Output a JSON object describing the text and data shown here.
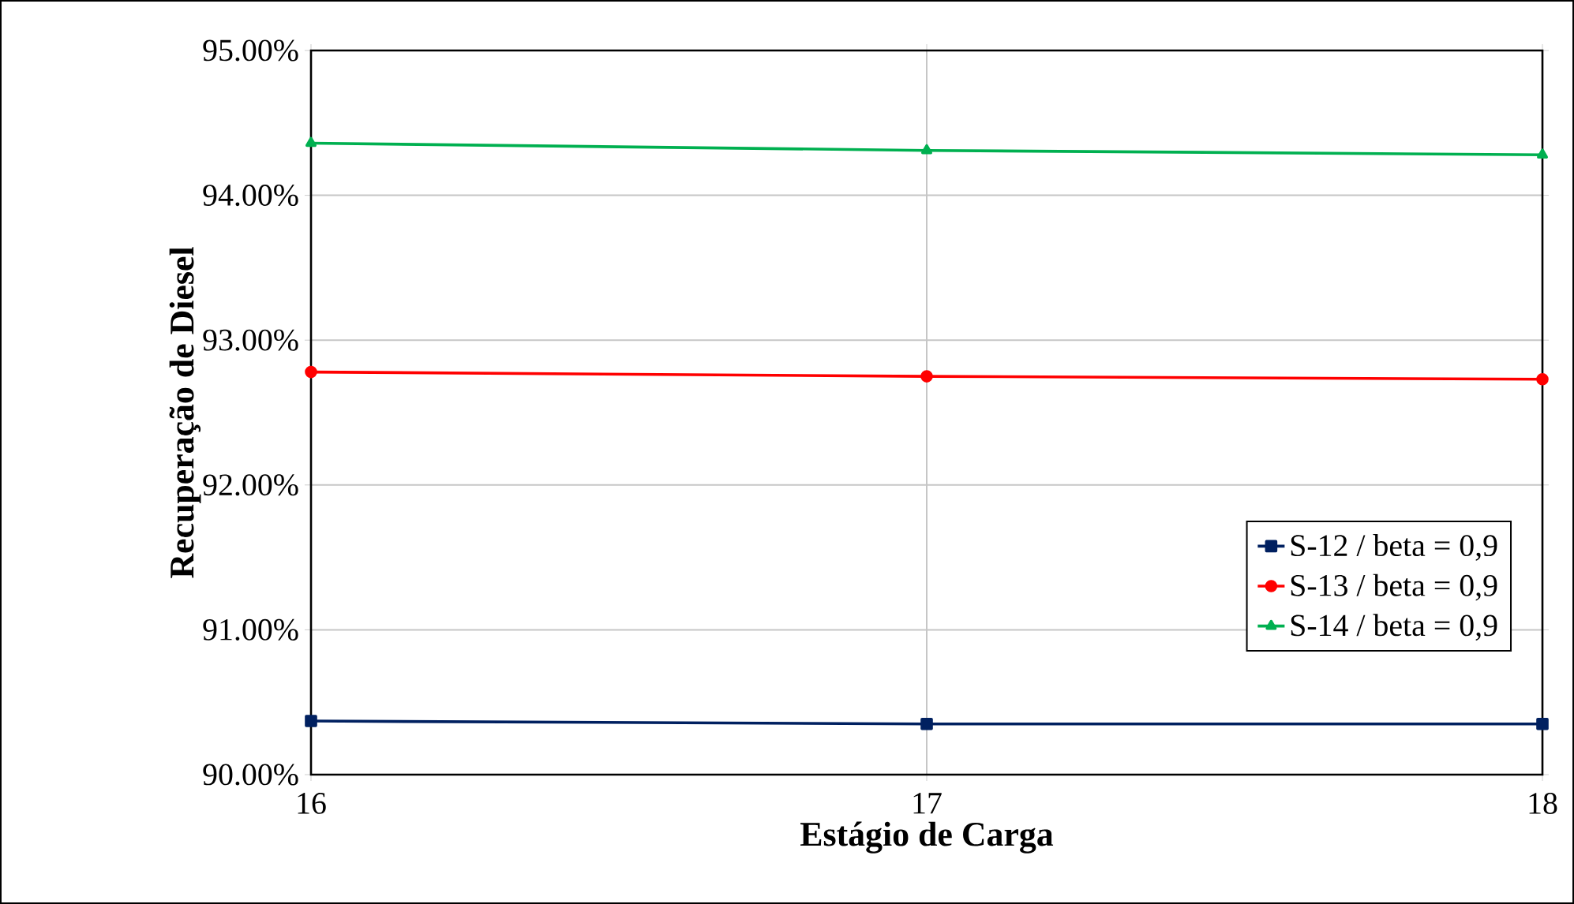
{
  "chart_data": {
    "type": "line",
    "xlabel": "Estágio de Carga",
    "ylabel": "Recuperação de Diesel",
    "x": [
      16,
      17,
      18
    ],
    "xlim": [
      16,
      18
    ],
    "xticks": [
      16,
      17,
      18
    ],
    "ylim": [
      90,
      95
    ],
    "yticks": [
      {
        "value": 90,
        "label": "90.00%"
      },
      {
        "value": 91,
        "label": "91.00%"
      },
      {
        "value": 92,
        "label": "92.00%"
      },
      {
        "value": 93,
        "label": "93.00%"
      },
      {
        "value": 94,
        "label": "94.00%"
      },
      {
        "value": 95,
        "label": "95.00%"
      }
    ],
    "grid": true,
    "legend": "right",
    "series": [
      {
        "name": "S-12 / beta = 0,9",
        "color": "#002060",
        "marker": "square",
        "values": [
          90.37,
          90.35,
          90.35
        ]
      },
      {
        "name": "S-13 / beta = 0,9",
        "color": "#ff0000",
        "marker": "circle",
        "values": [
          92.78,
          92.75,
          92.73
        ]
      },
      {
        "name": "S-14 / beta = 0,9",
        "color": "#00b050",
        "marker": "triangle",
        "values": [
          94.36,
          94.31,
          94.28
        ]
      }
    ]
  }
}
